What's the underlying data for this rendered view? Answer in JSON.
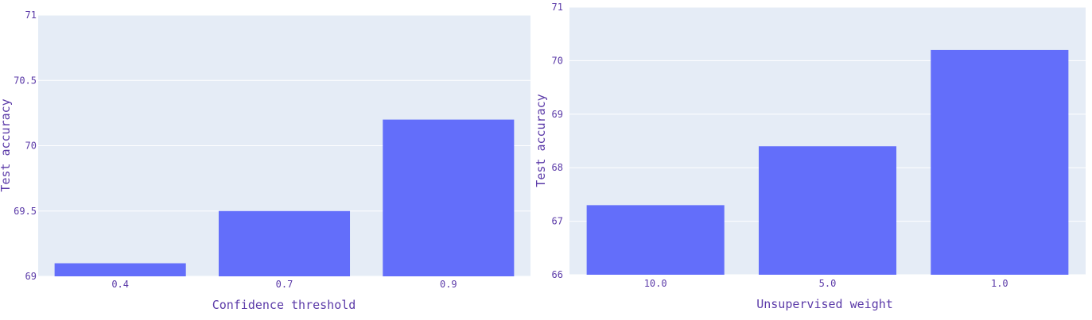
{
  "chart_data": [
    {
      "type": "bar",
      "categories": [
        "0.4",
        "0.7",
        "0.9"
      ],
      "values": [
        69.1,
        69.5,
        70.2
      ],
      "ylim": [
        69,
        71
      ],
      "yticks": [
        "69",
        "69.5",
        "70",
        "70.5",
        "71"
      ],
      "xlabel": "Confidence threshold",
      "ylabel": "Test accuracy",
      "bar_color": "#636efa",
      "grid": true
    },
    {
      "type": "bar",
      "categories": [
        "10.0",
        "5.0",
        "1.0"
      ],
      "values": [
        67.3,
        68.4,
        70.2
      ],
      "ylim": [
        66,
        71
      ],
      "yticks": [
        "66",
        "67",
        "68",
        "69",
        "70",
        "71"
      ],
      "xlabel": "Unsupervised weight",
      "ylabel": "Test accuracy",
      "bar_color": "#636efa",
      "grid": true
    }
  ]
}
